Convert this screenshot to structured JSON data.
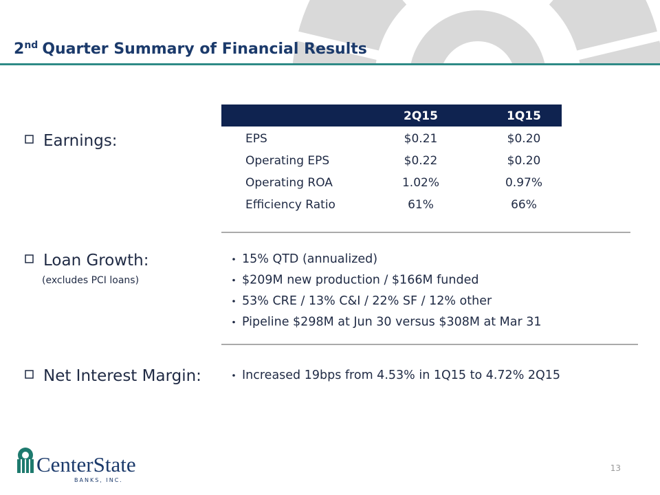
{
  "header": {
    "title_number": "2",
    "title_suffix": "nd",
    "title_text": "Quarter Summary of Financial Results"
  },
  "earnings": {
    "label": "Earnings:",
    "table": {
      "columns": [
        "2Q15",
        "1Q15"
      ],
      "rows": [
        [
          "EPS",
          "$0.21",
          "$0.20"
        ],
        [
          "Operating EPS",
          "$0.22",
          "$0.20"
        ],
        [
          "Operating ROA",
          "1.02%",
          "0.97%"
        ],
        [
          "Efficiency Ratio",
          "61%",
          "66%"
        ]
      ]
    }
  },
  "loan_growth": {
    "label": "Loan Growth:",
    "note": "(excludes PCI loans)",
    "bullets": [
      "15% QTD (annualized)",
      "$209M new production / $166M funded",
      "53% CRE / 13% C&I / 22% SF / 12% other",
      "Pipeline $298M at Jun 30 versus $308M at Mar 31"
    ]
  },
  "net_interest_margin": {
    "label": "Net Interest Margin:",
    "bullets": [
      "Increased 19bps from 4.53% in 1Q15 to 4.72% 2Q15"
    ]
  },
  "footer": {
    "logo_name": "CenterState",
    "logo_sub": "BANKS, INC.",
    "page_number": "13"
  }
}
